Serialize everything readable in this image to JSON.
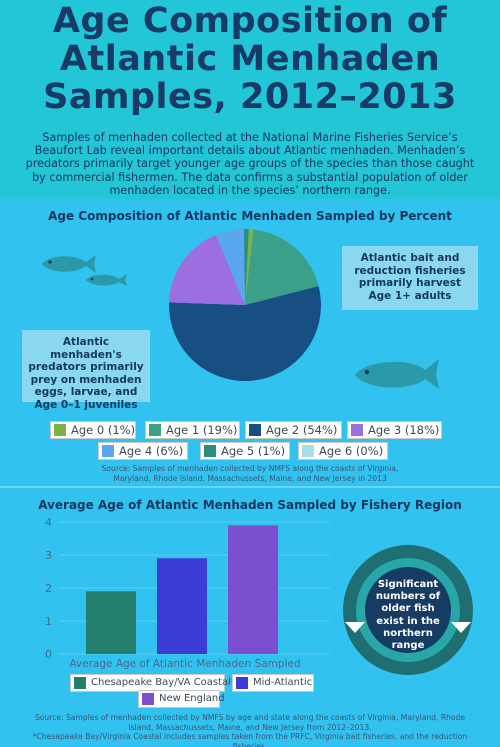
{
  "header": {
    "title_lines": [
      "Age Composition of",
      "Atlantic Menhaden",
      "Samples, 2012–2013"
    ],
    "intro": "Samples of menhaden collected at the National Marine Fisheries Service’s Beaufort Lab reveal important details about Atlantic menhaden. Menhaden’s predators primarily target younger age groups of the species than those caught by commercial fishermen. The data confirms a substantial population of older menhaden located in the species’ northern range."
  },
  "colors": {
    "header_bg": "#22c6d6",
    "panel_bg": "#32c2ef",
    "title": "#173a66",
    "fish": "#2a9aa8"
  },
  "callouts": {
    "right": "Atlantic bait and reduction fisheries primarily harvest Age 1+ adults",
    "left": "Atlantic menhaden's predators primarily prey on menhaden eggs, larvae, and Age 0–1 juveniles",
    "circle": "Significant numbers of older fish exist in the northern range"
  },
  "chart_data": [
    {
      "type": "pie",
      "title": "Age Composition of Atlantic Menhaden Sampled by Percent",
      "legend_position": "bottom",
      "slices": [
        {
          "label": "Age 0 (1%)",
          "value": 1,
          "color": "#7cb342"
        },
        {
          "label": "Age 1 (19%)",
          "value": 19,
          "color": "#3aa08a"
        },
        {
          "label": "Age 2 (54%)",
          "value": 54,
          "color": "#174f82"
        },
        {
          "label": "Age 3 (18%)",
          "value": 18,
          "color": "#9b6fe0"
        },
        {
          "label": "Age 4 (6%)",
          "value": 6,
          "color": "#5aa7ef"
        },
        {
          "label": "Age 5 (1%)",
          "value": 1,
          "color": "#2b8c82"
        },
        {
          "label": "Age 6 (0%)",
          "value": 0,
          "color": "#a9dde8"
        }
      ],
      "source": "Source: Samples of menhaden collected by NMFS along the coasts of Virginia, Maryland, Rhode Island, Massachussets, Maine, and New Jersey in 2013"
    },
    {
      "type": "bar",
      "title": "Average Age of Atlantic Menhaden Sampled by Fishery Region",
      "xlabel": "Average Age of Atlantic Menhaden Sampled",
      "ylim": [
        0,
        4
      ],
      "yticks": [
        "0",
        "1",
        "2",
        "3",
        "4"
      ],
      "grid": true,
      "legend_position": "bottom",
      "categories": [
        "Chesapeake Bay/VA Coastal*",
        "Mid-Atlantic",
        "New England"
      ],
      "values": [
        1.9,
        2.9,
        3.9
      ],
      "colors": [
        "#257f6f",
        "#3b3bd6",
        "#7b4fd0"
      ],
      "source": "Source: Samples of menhaden collected by NMFS by age and state along the coasts of Virginia, Maryland, Rhode Island, Massachussets, Maine, and New Jersey from 2012–2013.",
      "footnote": "*Chesapeake Bay/Virginia Coastal includes samples taken from the PRFC, Virginia bait fisheries, and the reduction fisheries."
    }
  ]
}
